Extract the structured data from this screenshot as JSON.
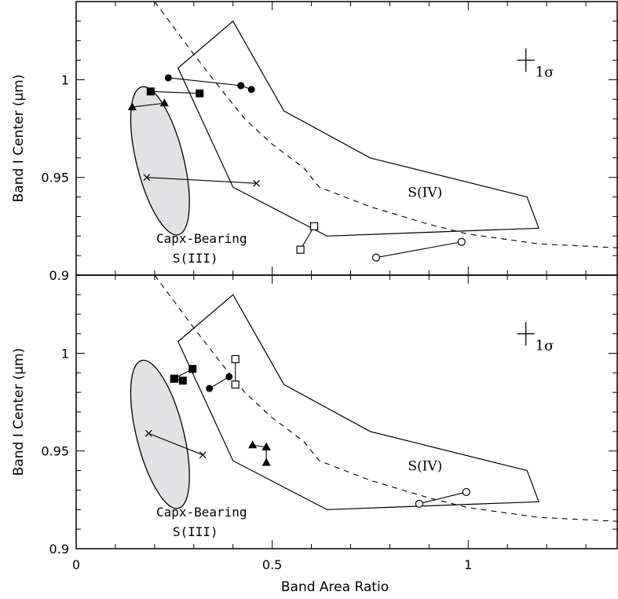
{
  "chart_data": {
    "type": "scatter",
    "xlabel": "Band Area Ratio",
    "ylabel": "Band I Center (μm)",
    "xlim": [
      0,
      1.38
    ],
    "ylim": [
      0.9,
      1.04
    ],
    "x_ticks": [
      {
        "value": 0,
        "label": "0"
      },
      {
        "value": 0.5,
        "label": "0.5"
      },
      {
        "value": 1,
        "label": "1"
      }
    ],
    "y_ticks": [
      {
        "value": 0.9,
        "label": "0.9"
      },
      {
        "value": 0.95,
        "label": "0.95"
      },
      {
        "value": 1,
        "label": "1"
      }
    ],
    "x_minor_step": 0.1,
    "y_minor_step": 0.01,
    "regions": {
      "s4": {
        "label": "S(IV)",
        "label_at": [
          0.89,
          0.94
        ],
        "polygon": [
          [
            0.26,
            1.006
          ],
          [
            0.4,
            1.03
          ],
          [
            0.53,
            0.984
          ],
          [
            0.75,
            0.96
          ],
          [
            1.15,
            0.94
          ],
          [
            1.18,
            0.924
          ],
          [
            0.64,
            0.92
          ],
          [
            0.4,
            0.945
          ]
        ]
      },
      "capx": {
        "label_line1": "Capx-Bearing",
        "label_line2": "S(III)",
        "label_at": [
          0.32,
          0.919
        ],
        "fill": "#e2e2e4",
        "ellipse": {
          "cx": 0.214,
          "cy": 0.9585,
          "rx": 0.06,
          "ry": 0.039,
          "rotation_deg": -14
        }
      }
    },
    "boundary_curve": [
      [
        0.2,
        1.04
      ],
      [
        0.3,
        1.013
      ],
      [
        0.37,
        0.995
      ],
      [
        0.43,
        0.98
      ],
      [
        0.5,
        0.967
      ],
      [
        0.58,
        0.955
      ],
      [
        0.62,
        0.945
      ],
      [
        0.75,
        0.935
      ],
      [
        0.9,
        0.926
      ],
      [
        1.0,
        0.921
      ],
      [
        1.18,
        0.916
      ],
      [
        1.38,
        0.914
      ]
    ],
    "sigma_bar": {
      "x": 1.147,
      "y": 1.01,
      "dx": 0.022,
      "dy": 0.006,
      "label": "1σ"
    },
    "panels": [
      {
        "name": "upper",
        "pairs": [
          {
            "marker": "filled-circle",
            "points": [
              [
                0.235,
                1.001
              ],
              [
                0.42,
                0.997
              ]
            ]
          },
          {
            "marker": "filled-circle",
            "points": [
              [
                0.42,
                0.997
              ],
              [
                0.447,
                0.995
              ]
            ]
          },
          {
            "marker": "filled-square",
            "points": [
              [
                0.19,
                0.994
              ],
              [
                0.315,
                0.993
              ]
            ]
          },
          {
            "marker": "filled-triangle",
            "points": [
              [
                0.143,
                0.986
              ],
              [
                0.225,
                0.988
              ]
            ]
          },
          {
            "marker": "cross",
            "points": [
              [
                0.18,
                0.95
              ],
              [
                0.46,
                0.947
              ]
            ]
          },
          {
            "marker": "open-square",
            "points": [
              [
                0.572,
                0.913
              ],
              [
                0.607,
                0.925
              ]
            ]
          },
          {
            "marker": "open-circle",
            "points": [
              [
                0.765,
                0.909
              ],
              [
                0.983,
                0.917
              ]
            ]
          }
        ]
      },
      {
        "name": "lower",
        "pairs": [
          {
            "marker": "filled-square",
            "points": [
              [
                0.25,
                0.987
              ],
              [
                0.297,
                0.992
              ]
            ]
          },
          {
            "marker": "filled-square",
            "points": [
              [
                0.25,
                0.987
              ],
              [
                0.272,
                0.986
              ]
            ]
          },
          {
            "marker": "filled-circle",
            "points": [
              [
                0.34,
                0.982
              ],
              [
                0.39,
                0.988
              ]
            ]
          },
          {
            "marker": "open-square",
            "points": [
              [
                0.406,
                0.997
              ],
              [
                0.406,
                0.984
              ]
            ]
          },
          {
            "marker": "filled-triangle",
            "points": [
              [
                0.45,
                0.953
              ],
              [
                0.485,
                0.952
              ]
            ]
          },
          {
            "marker": "filled-triangle",
            "points": [
              [
                0.485,
                0.952
              ],
              [
                0.485,
                0.944
              ]
            ]
          },
          {
            "marker": "cross",
            "points": [
              [
                0.185,
                0.959
              ],
              [
                0.323,
                0.948
              ]
            ]
          },
          {
            "marker": "open-circle",
            "points": [
              [
                0.875,
                0.923
              ],
              [
                0.995,
                0.929
              ]
            ]
          }
        ]
      }
    ]
  }
}
